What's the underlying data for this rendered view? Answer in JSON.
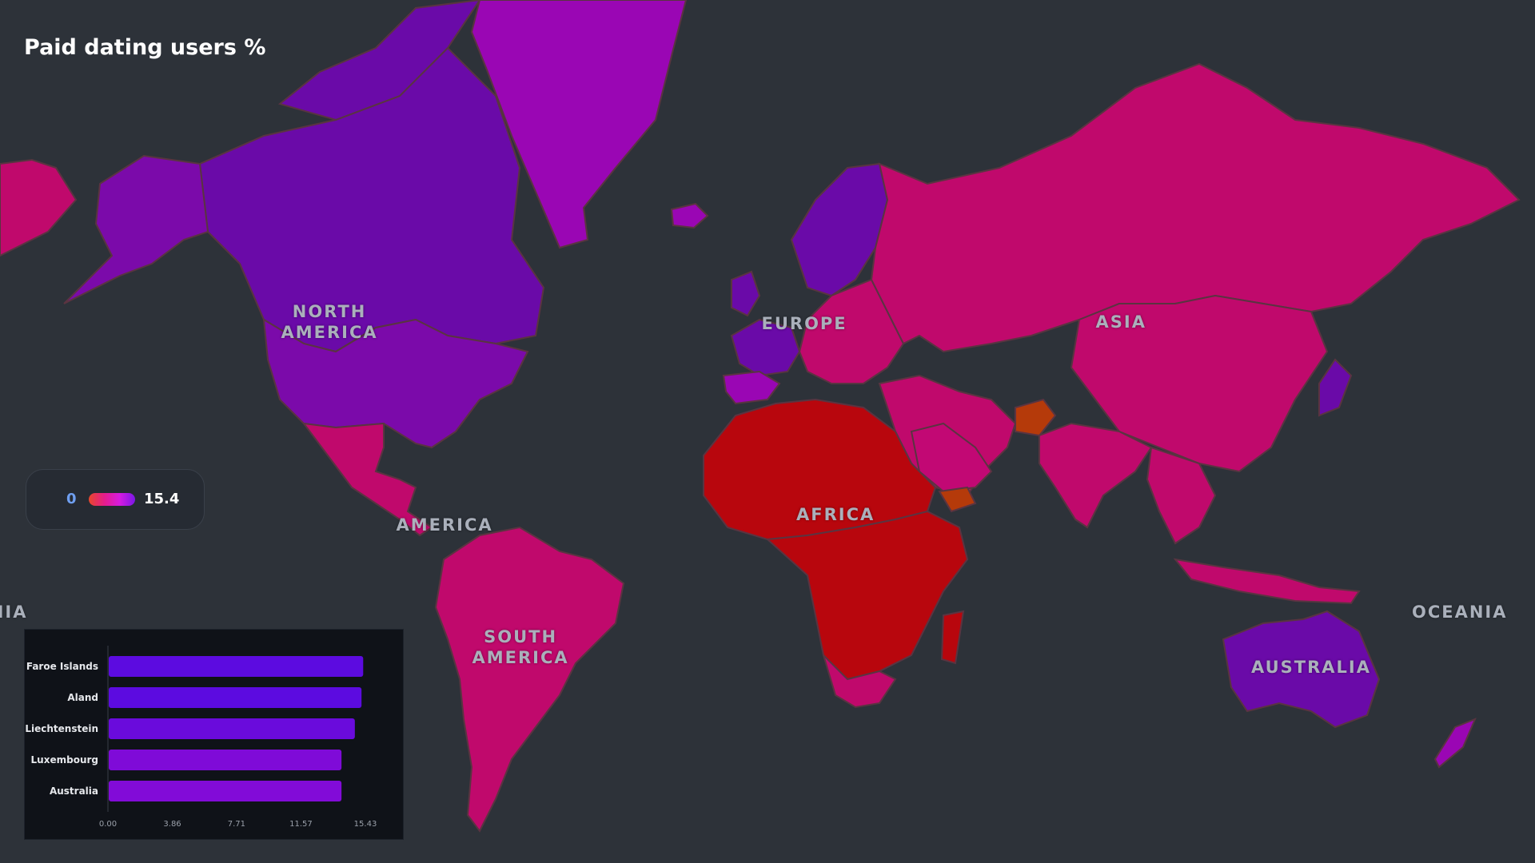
{
  "map": {
    "title": "Paid dating users %",
    "region_labels": [
      "NORTH\nAMERICA",
      "EUROPE",
      "ASIA",
      "AFRICA",
      "AMERICA",
      "SOUTH\nAMERICA",
      "OCEANIA",
      "AUSTRALIA",
      "OCEANIA"
    ],
    "legend": {
      "min": "0",
      "max": "15.4"
    },
    "colors": {
      "ocean": "#2d3239",
      "border": "#5a3441",
      "high": "#6a0aa8",
      "upper": "#9a06b4",
      "mid": "#c0096c",
      "low": "#b8060d",
      "lowest": "#b53a0a"
    }
  },
  "chart_data": {
    "type": "bar",
    "orientation": "horizontal",
    "categories": [
      "Faroe Islands",
      "Aland",
      "Liechtenstein",
      "Luxembourg",
      "Australia"
    ],
    "values": [
      15.3,
      15.2,
      14.8,
      14.0,
      14.0
    ],
    "tick_labels": [
      "0.00",
      "3.86",
      "7.71",
      "11.57",
      "15.43"
    ],
    "xlim": [
      0,
      15.43
    ],
    "colors": [
      "#5c0be0",
      "#5c0be0",
      "#6a0bdc",
      "#7f0bd8",
      "#820bd8"
    ]
  }
}
